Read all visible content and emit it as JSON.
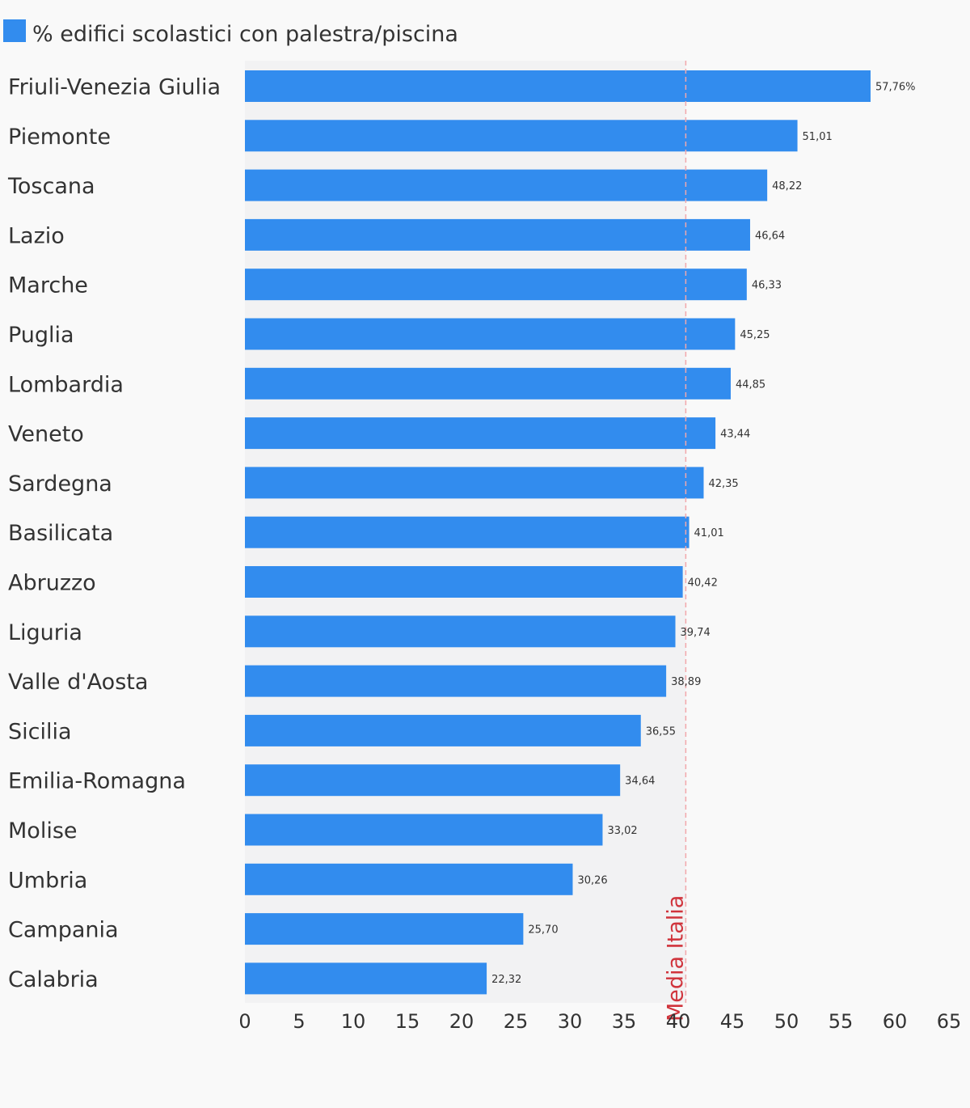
{
  "chart_data": {
    "type": "bar",
    "orientation": "horizontal",
    "legend": {
      "label": "% edifici scolastici con palestra/piscina",
      "color": "#328cee",
      "position": "top-left"
    },
    "categories": [
      "Friuli-Venezia Giulia",
      "Piemonte",
      "Toscana",
      "Lazio",
      "Marche",
      "Puglia",
      "Lombardia",
      "Veneto",
      "Sardegna",
      "Basilicata",
      "Abruzzo",
      "Liguria",
      "Valle d'Aosta",
      "Sicilia",
      "Emilia-Romagna",
      "Molise",
      "Umbria",
      "Campania",
      "Calabria"
    ],
    "series": [
      {
        "name": "% edifici scolastici con palestra/piscina",
        "values": [
          57.76,
          51.01,
          48.22,
          46.64,
          46.33,
          45.25,
          44.85,
          43.44,
          42.35,
          41.01,
          40.42,
          39.74,
          38.89,
          36.55,
          34.64,
          33.02,
          30.26,
          25.7,
          22.32
        ],
        "data_labels": [
          "57,76%",
          "51,01",
          "48,22",
          "46,64",
          "46,33",
          "45,25",
          "44,85",
          "43,44",
          "42,35",
          "41,01",
          "40,42",
          "39,74",
          "38,89",
          "36,55",
          "34,64",
          "33,02",
          "30,26",
          "25,70",
          "22,32"
        ]
      }
    ],
    "xlim": [
      0,
      65
    ],
    "xticks": [
      0,
      5,
      10,
      15,
      20,
      25,
      30,
      35,
      40,
      45,
      50,
      55,
      60,
      65
    ],
    "grid": false,
    "reference_line": {
      "value": 40.7,
      "label": "Media Italia",
      "color": "#d0343c"
    },
    "colors": {
      "bar": "#328cee",
      "plot_background": "#f2f2f3",
      "page_background": "#f9f9f9"
    }
  }
}
